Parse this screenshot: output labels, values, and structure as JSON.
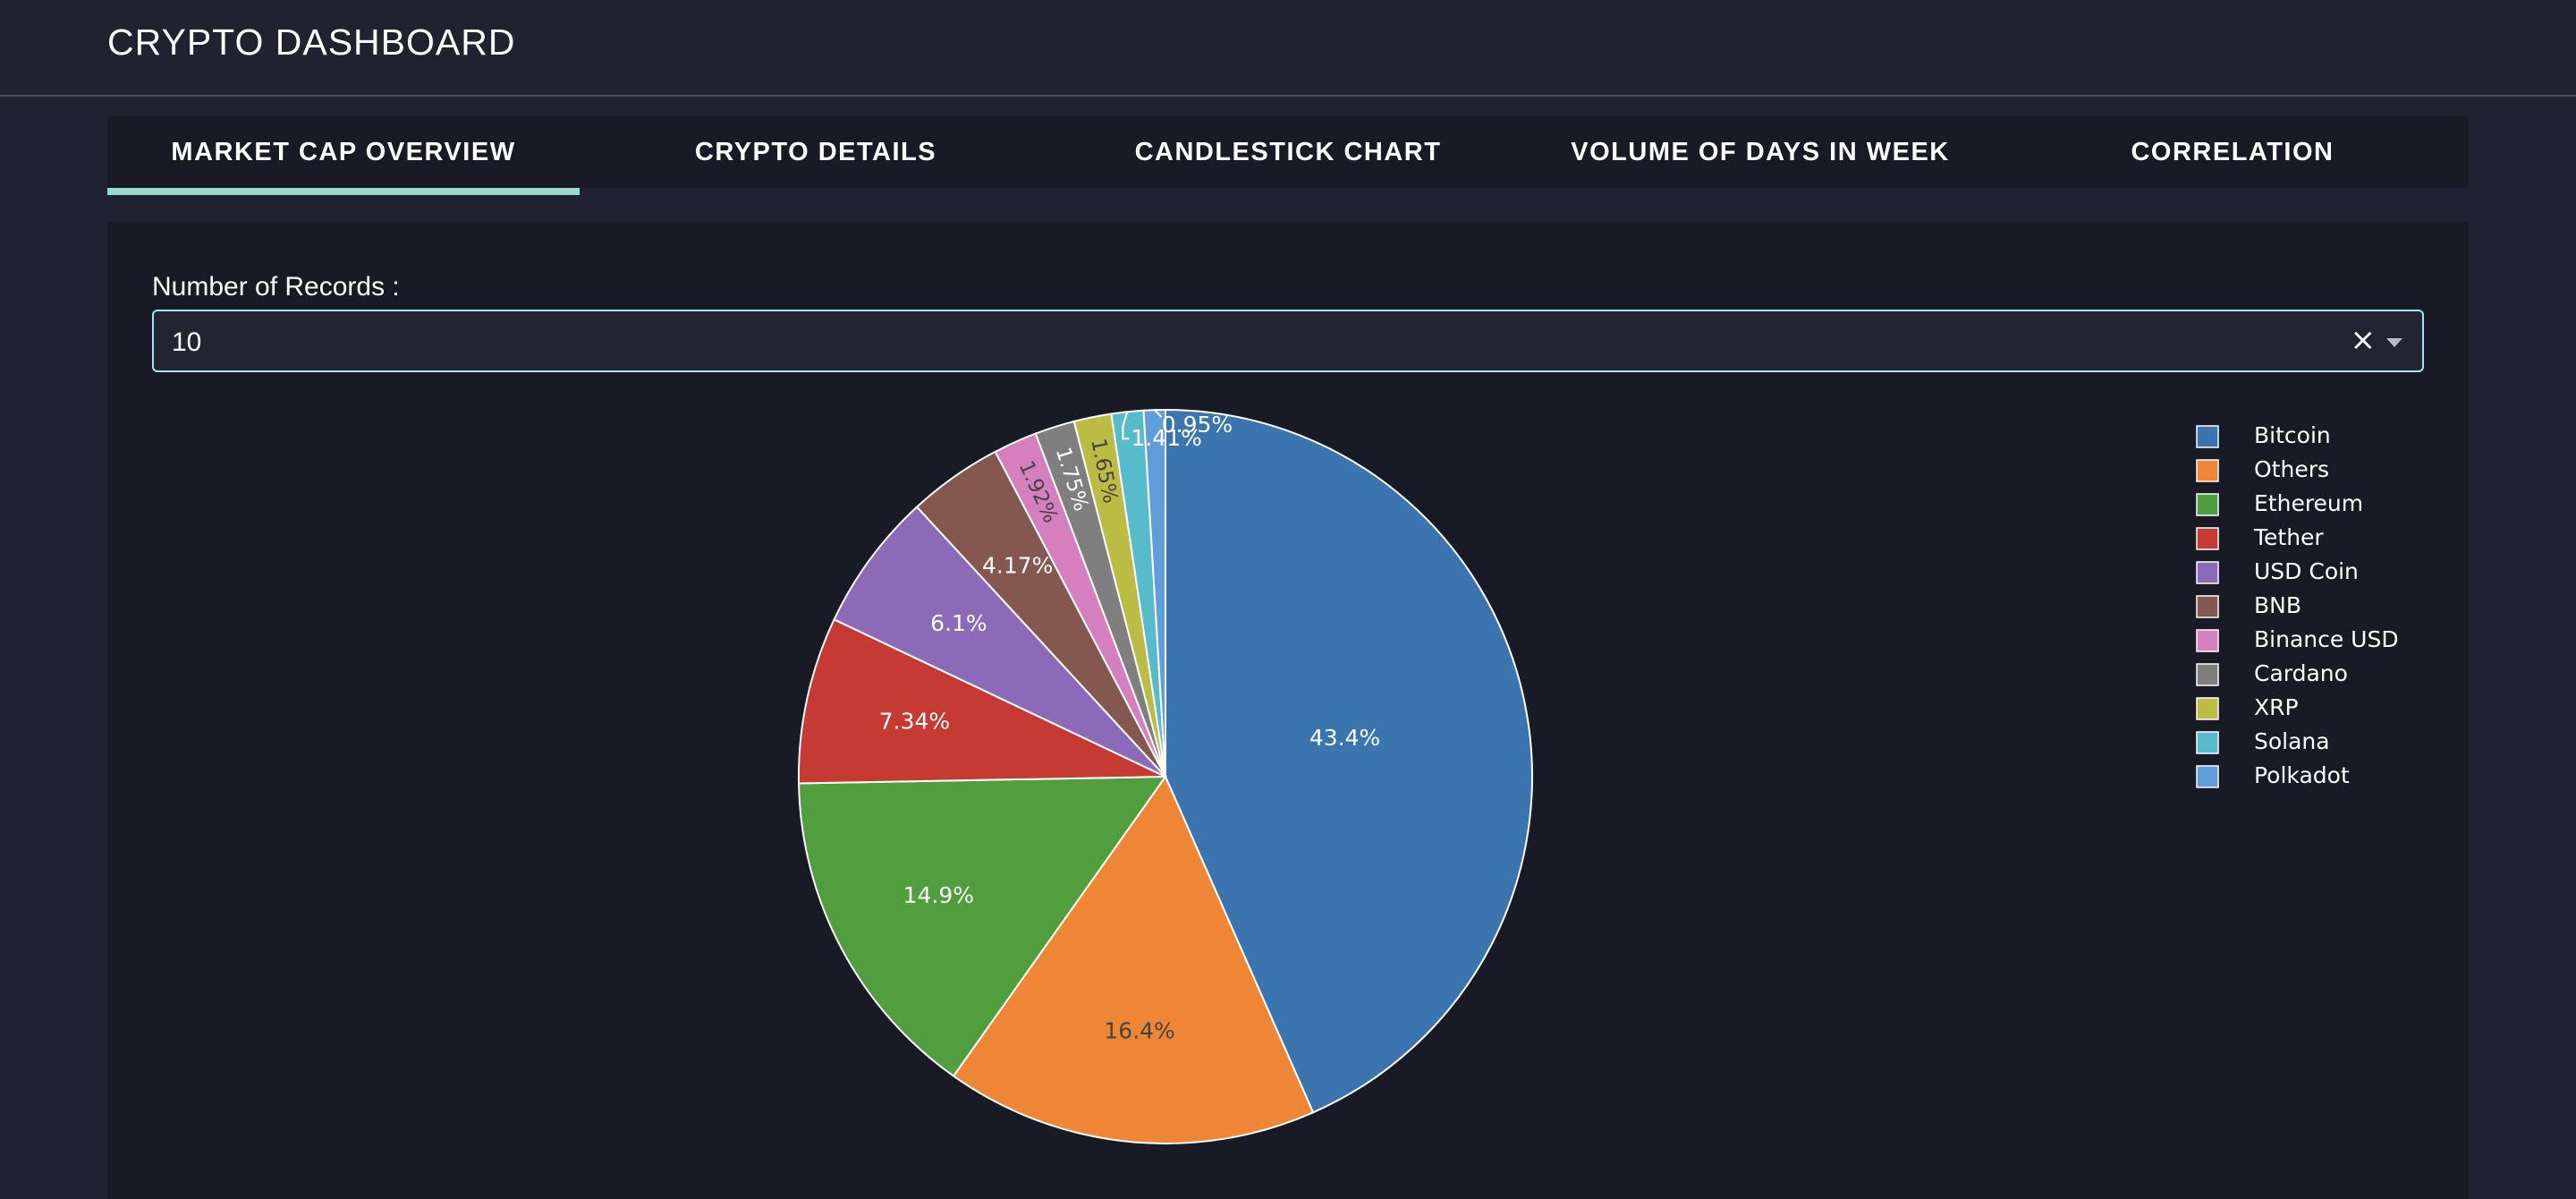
{
  "app": {
    "title": "CRYPTO DASHBOARD"
  },
  "tabs": [
    {
      "label": "MARKET CAP OVERVIEW",
      "active": true
    },
    {
      "label": "CRYPTO DETAILS",
      "active": false
    },
    {
      "label": "CANDLESTICK CHART",
      "active": false
    },
    {
      "label": "VOLUME OF DAYS IN WEEK",
      "active": false
    },
    {
      "label": "CORRELATION",
      "active": false
    }
  ],
  "controls": {
    "records_label": "Number of Records :",
    "records_value": "10",
    "clear_icon": "×",
    "dropdown_icon": "caret-down-icon"
  },
  "colors": {
    "accent": "#98d9cc",
    "select_border": "#a7e3ee",
    "background": "#1f2230",
    "panel": "#181b26"
  },
  "chart_data": {
    "type": "pie",
    "title": "",
    "legend_position": "right",
    "slices": [
      {
        "label": "Bitcoin",
        "value": 43.4,
        "text": "43.4%",
        "color": "#3b75af",
        "text_color": "#ffffff"
      },
      {
        "label": "Others",
        "value": 16.4,
        "text": "16.4%",
        "color": "#ef8636",
        "text_color": "#444444"
      },
      {
        "label": "Ethereum",
        "value": 14.9,
        "text": "14.9%",
        "color": "#519e3e",
        "text_color": "#ffffff"
      },
      {
        "label": "Tether",
        "value": 7.34,
        "text": "7.34%",
        "color": "#c53a32",
        "text_color": "#ffffff"
      },
      {
        "label": "USD Coin",
        "value": 6.1,
        "text": "6.1%",
        "color": "#8d6ab8",
        "text_color": "#ffffff"
      },
      {
        "label": "BNB",
        "value": 4.17,
        "text": "4.17%",
        "color": "#84584e",
        "text_color": "#ffffff"
      },
      {
        "label": "Binance USD",
        "value": 1.92,
        "text": "1.92%",
        "color": "#d57fbe",
        "text_color": "#444444"
      },
      {
        "label": "Cardano",
        "value": 1.75,
        "text": "1.75%",
        "color": "#7f7f7f",
        "text_color": "#ffffff"
      },
      {
        "label": "XRP",
        "value": 1.65,
        "text": "1.65%",
        "color": "#bcbc45",
        "text_color": "#444444"
      },
      {
        "label": "Solana",
        "value": 1.41,
        "text": "1.41%",
        "color": "#58bbcc",
        "text_color": "#ffffff"
      },
      {
        "label": "Polkadot",
        "value": 0.95,
        "text": "0.95%",
        "color": "#5f9ed8",
        "text_color": "#ffffff"
      }
    ]
  }
}
